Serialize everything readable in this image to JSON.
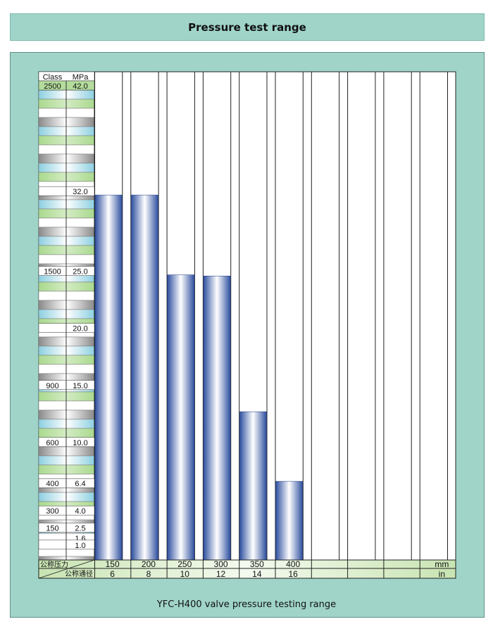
{
  "title": "Pressure test range",
  "caption": "YFC-H400 valve pressure testing range",
  "chart_data": {
    "type": "bar",
    "categories": [
      "150",
      "200",
      "250",
      "300",
      "350",
      "400",
      "",
      "",
      "",
      ""
    ],
    "categories_in": [
      "6",
      "8",
      "10",
      "12",
      "14",
      "16",
      "",
      "",
      "",
      ""
    ],
    "values": [
      32.0,
      32.0,
      25.0,
      24.9,
      13.0,
      6.9,
      null,
      null,
      null,
      null
    ],
    "ylabel": "MPa",
    "ylim": [
      0,
      42.0
    ],
    "y_header_class": "Class",
    "y_header_mpa": "MPa",
    "y_scale": [
      {
        "class": "2500",
        "mpa": "42.0",
        "value": 42.0
      },
      {
        "class": "",
        "mpa": "32.0",
        "value": 32.0
      },
      {
        "class": "1500",
        "mpa": "25.0",
        "value": 25.0
      },
      {
        "class": "",
        "mpa": "20.0",
        "value": 20.0
      },
      {
        "class": "900",
        "mpa": "15.0",
        "value": 15.0
      },
      {
        "class": "600",
        "mpa": "10.0",
        "value": 10.0
      },
      {
        "class": "400",
        "mpa": "6.4",
        "value": 6.4
      },
      {
        "class": "300",
        "mpa": "4.0",
        "value": 4.0
      },
      {
        "class": "150",
        "mpa": "2.5",
        "value": 2.5
      },
      {
        "class": "",
        "mpa": "1.6",
        "value": 1.6
      },
      {
        "class": "",
        "mpa": "1.0",
        "value": 1.0
      }
    ],
    "row_label_pressure": "公称压力",
    "row_label_diameter": "公称通径",
    "unit_mm": "mm",
    "unit_in": "in",
    "bar_color": "#2e4f9f",
    "bar_highlight": "#ffffff",
    "grid": true,
    "legend": "none"
  }
}
